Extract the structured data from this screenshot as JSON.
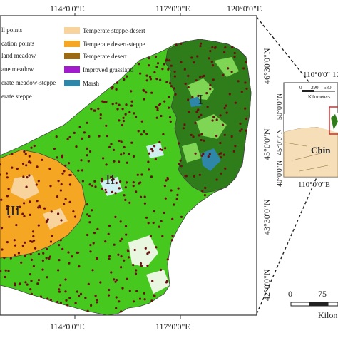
{
  "main_map": {
    "top_coords": [
      "114°0'0\"E",
      "117°0'0\"E",
      "120°0'0\"E"
    ],
    "bottom_coords": [
      "114°0'0\"E",
      "117°0'0\"E"
    ],
    "right_coords": [
      "46°30'0\"N",
      "45°0'0\"N",
      "43°30'0\"N",
      "42°0'0\"N"
    ],
    "region_labels": [
      "I",
      "II",
      "III"
    ],
    "legend": {
      "left": [
        {
          "label": "ll points"
        },
        {
          "label": "cation points"
        },
        {
          "label": "land meadow"
        },
        {
          "label": "ane meadow"
        },
        {
          "label": "erate meadow-steppe"
        },
        {
          "label": "erate steppe"
        }
      ],
      "right": [
        {
          "label": "Temperate steppe-desert",
          "color": "#f8d39c"
        },
        {
          "label": "Temperate desert-steppe",
          "color": "#f5a623"
        },
        {
          "label": "Temperate desert",
          "color": "#9c6a14"
        },
        {
          "label": "Improved grassland",
          "color": "#a21ccd"
        },
        {
          "label": "Marsh",
          "color": "#2e86a8"
        }
      ]
    }
  },
  "inset_map": {
    "top_coords": [
      "110°0'0\"",
      "12"
    ],
    "scale_ticks": [
      "0",
      "290",
      "580"
    ],
    "scale_unit": "Kilometers",
    "left_coords": [
      "50°0'0\"N",
      "45°0'0\"N",
      "40°0'0\"N"
    ],
    "bottom_coord": "110°0'0\"E",
    "country_label": "Chin"
  },
  "scale_bar": {
    "ticks": [
      "0",
      "75"
    ],
    "unit": "Kilon"
  },
  "colors": {
    "steppe": "#46c81e",
    "meadow_steppe": "#2e7d1a",
    "meadow_light": "#7fd654",
    "desert_steppe": "#f5a623",
    "points": "#6b1010",
    "water": "#cfeff0"
  }
}
